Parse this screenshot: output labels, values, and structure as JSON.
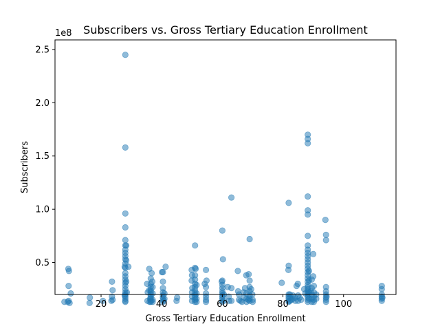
{
  "chart_data": {
    "type": "scatter",
    "title": "Subscribers vs. Gross Tertiary Education Enrollment",
    "xlabel": "Gross Tertiary Education Enrollment",
    "ylabel": "Subscribers",
    "y_offset_label": "1e8",
    "xlim": [
      4.8,
      117.3
    ],
    "ylim": [
      2.0,
      25.9
    ],
    "y_unit_multiplier": 100000000,
    "x_ticks": [
      {
        "value": 20,
        "label": "20"
      },
      {
        "value": 40,
        "label": "40"
      },
      {
        "value": 60,
        "label": "60"
      },
      {
        "value": 80,
        "label": "80"
      },
      {
        "value": 100,
        "label": "100"
      }
    ],
    "y_ticks": [
      {
        "value": 5,
        "label": "0.5"
      },
      {
        "value": 10,
        "label": "1.0"
      },
      {
        "value": 15,
        "label": "1.5"
      },
      {
        "value": 20,
        "label": "2.0"
      },
      {
        "value": 25,
        "label": "2.5"
      }
    ],
    "grid": false,
    "legend": "none",
    "marker_color": "#1f77b4",
    "marker_alpha": 0.5,
    "points": [
      [
        7.9,
        1.3
      ],
      [
        9.0,
        1.3
      ],
      [
        9.3,
        1.4
      ],
      [
        9.6,
        1.2
      ],
      [
        9.3,
        2.8
      ],
      [
        10.0,
        2.1
      ],
      [
        9.2,
        4.4
      ],
      [
        9.4,
        4.2
      ],
      [
        16.2,
        1.2
      ],
      [
        16.3,
        1.7
      ],
      [
        20.6,
        1.4
      ],
      [
        23.4,
        1.4
      ],
      [
        23.6,
        1.8
      ],
      [
        23.8,
        2.4
      ],
      [
        23.6,
        3.2
      ],
      [
        23.8,
        1.5
      ],
      [
        28.0,
        24.5
      ],
      [
        28.0,
        15.8
      ],
      [
        28.0,
        9.6
      ],
      [
        28.0,
        8.3
      ],
      [
        28.0,
        7.1
      ],
      [
        28.0,
        6.6
      ],
      [
        28.0,
        6.2
      ],
      [
        28.0,
        5.9
      ],
      [
        28.0,
        5.6
      ],
      [
        28.0,
        5.3
      ],
      [
        28.0,
        4.9
      ],
      [
        28.0,
        4.5
      ],
      [
        28.0,
        4.0
      ],
      [
        28.0,
        3.7
      ],
      [
        28.0,
        3.4
      ],
      [
        28.0,
        3.1
      ],
      [
        28.0,
        2.8
      ],
      [
        28.0,
        2.5
      ],
      [
        28.0,
        2.2
      ],
      [
        28.0,
        2.0
      ],
      [
        28.0,
        1.8
      ],
      [
        28.0,
        1.6
      ],
      [
        28.0,
        1.4
      ],
      [
        28.0,
        1.3
      ],
      [
        28.3,
        6.6
      ],
      [
        28.3,
        5.2
      ],
      [
        28.3,
        3.2
      ],
      [
        27.8,
        4.6
      ],
      [
        29.0,
        4.6
      ],
      [
        28.5,
        2.2
      ],
      [
        27.8,
        1.9
      ],
      [
        35.2,
        3.0
      ],
      [
        35.4,
        2.2
      ],
      [
        35.3,
        1.4
      ],
      [
        35.9,
        2.4
      ],
      [
        36.2,
        1.6
      ],
      [
        36.0,
        1.3
      ],
      [
        35.9,
        4.4
      ],
      [
        36.4,
        3.5
      ],
      [
        36.4,
        3.0
      ],
      [
        36.4,
        2.7
      ],
      [
        36.4,
        2.4
      ],
      [
        36.4,
        2.2
      ],
      [
        36.4,
        2.0
      ],
      [
        36.4,
        1.8
      ],
      [
        36.4,
        1.6
      ],
      [
        36.4,
        1.4
      ],
      [
        36.4,
        1.3
      ],
      [
        36.7,
        4.0
      ],
      [
        36.9,
        3.2
      ],
      [
        37.0,
        2.7
      ],
      [
        37.0,
        2.1
      ],
      [
        37.0,
        1.5
      ],
      [
        37.0,
        1.3
      ],
      [
        40.1,
        4.1
      ],
      [
        40.4,
        4.1
      ],
      [
        40.4,
        3.2
      ],
      [
        40.4,
        2.6
      ],
      [
        40.4,
        2.2
      ],
      [
        40.4,
        1.9
      ],
      [
        40.4,
        1.7
      ],
      [
        40.4,
        1.5
      ],
      [
        40.4,
        1.3
      ],
      [
        40.9,
        2.1
      ],
      [
        40.9,
        1.6
      ],
      [
        40.7,
        1.4
      ],
      [
        41.3,
        4.6
      ],
      [
        44.9,
        1.4
      ],
      [
        45.1,
        1.7
      ],
      [
        49.9,
        4.3
      ],
      [
        50.0,
        3.8
      ],
      [
        49.9,
        3.3
      ],
      [
        50.1,
        2.6
      ],
      [
        50.0,
        2.2
      ],
      [
        50.0,
        1.8
      ],
      [
        50.0,
        1.4
      ],
      [
        51.0,
        6.6
      ],
      [
        51.0,
        4.5
      ],
      [
        51.2,
        4.4
      ],
      [
        51.0,
        3.8
      ],
      [
        51.0,
        3.4
      ],
      [
        51.0,
        3.0
      ],
      [
        51.0,
        2.7
      ],
      [
        51.0,
        2.4
      ],
      [
        51.0,
        2.1
      ],
      [
        51.0,
        1.9
      ],
      [
        51.0,
        1.7
      ],
      [
        51.0,
        1.5
      ],
      [
        51.0,
        1.3
      ],
      [
        51.5,
        2.9
      ],
      [
        51.5,
        2.1
      ],
      [
        51.5,
        1.6
      ],
      [
        51.5,
        1.3
      ],
      [
        54.2,
        3.0
      ],
      [
        54.6,
        4.3
      ],
      [
        54.8,
        3.3
      ],
      [
        54.6,
        2.7
      ],
      [
        54.6,
        2.1
      ],
      [
        54.6,
        1.8
      ],
      [
        54.6,
        1.5
      ],
      [
        54.6,
        1.3
      ],
      [
        59.8,
        3.2
      ],
      [
        60.0,
        3.3
      ],
      [
        60.0,
        2.9
      ],
      [
        60.0,
        2.6
      ],
      [
        60.0,
        2.3
      ],
      [
        60.0,
        2.1
      ],
      [
        60.0,
        1.9
      ],
      [
        60.0,
        1.7
      ],
      [
        60.0,
        1.5
      ],
      [
        60.0,
        1.3
      ],
      [
        60.0,
        8.0
      ],
      [
        60.2,
        5.3
      ],
      [
        60.5,
        2.0
      ],
      [
        60.5,
        1.4
      ],
      [
        61.8,
        2.7
      ],
      [
        62.1,
        1.8
      ],
      [
        62.2,
        1.4
      ],
      [
        63.0,
        11.1
      ],
      [
        63.0,
        2.6
      ],
      [
        63.0,
        1.4
      ],
      [
        65.1,
        4.2
      ],
      [
        65.2,
        2.3
      ],
      [
        65.5,
        2.0
      ],
      [
        65.5,
        1.5
      ],
      [
        66.0,
        1.4
      ],
      [
        66.5,
        1.3
      ],
      [
        67.0,
        2.2
      ],
      [
        67.2,
        1.7
      ],
      [
        67.5,
        2.6
      ],
      [
        67.9,
        3.8
      ],
      [
        68.0,
        2.1
      ],
      [
        68.0,
        1.6
      ],
      [
        68.0,
        1.3
      ],
      [
        68.6,
        1.5
      ],
      [
        68.7,
        3.9
      ],
      [
        69.0,
        7.2
      ],
      [
        69.0,
        3.3
      ],
      [
        69.0,
        2.7
      ],
      [
        69.0,
        2.3
      ],
      [
        69.0,
        1.9
      ],
      [
        69.0,
        1.6
      ],
      [
        69.0,
        1.4
      ],
      [
        69.5,
        2.5
      ],
      [
        69.9,
        2.0
      ],
      [
        70.0,
        1.5
      ],
      [
        70.0,
        1.3
      ],
      [
        79.6,
        3.1
      ],
      [
        81.9,
        10.6
      ],
      [
        81.9,
        4.7
      ],
      [
        81.8,
        4.3
      ],
      [
        81.9,
        2.0
      ],
      [
        81.9,
        1.8
      ],
      [
        81.9,
        1.6
      ],
      [
        81.9,
        1.4
      ],
      [
        81.9,
        1.3
      ],
      [
        82.3,
        2.0
      ],
      [
        82.3,
        1.7
      ],
      [
        82.3,
        1.4
      ],
      [
        82.9,
        1.5
      ],
      [
        83.3,
        1.9
      ],
      [
        83.3,
        1.6
      ],
      [
        84.0,
        1.7
      ],
      [
        84.1,
        1.4
      ],
      [
        84.5,
        2.8
      ],
      [
        84.9,
        3.0
      ],
      [
        85.0,
        1.9
      ],
      [
        85.0,
        1.4
      ],
      [
        85.5,
        1.7
      ],
      [
        86.0,
        1.5
      ],
      [
        87.0,
        2.5
      ],
      [
        87.4,
        2.1
      ],
      [
        88.2,
        17.0
      ],
      [
        88.2,
        16.6
      ],
      [
        88.2,
        16.2
      ],
      [
        88.2,
        11.2
      ],
      [
        88.2,
        9.9
      ],
      [
        88.2,
        9.5
      ],
      [
        88.2,
        7.5
      ],
      [
        88.2,
        6.6
      ],
      [
        88.2,
        6.2
      ],
      [
        88.2,
        5.9
      ],
      [
        88.2,
        5.6
      ],
      [
        88.2,
        5.3
      ],
      [
        88.2,
        5.0
      ],
      [
        88.2,
        4.7
      ],
      [
        88.2,
        4.4
      ],
      [
        88.2,
        4.1
      ],
      [
        88.2,
        3.8
      ],
      [
        88.2,
        3.5
      ],
      [
        88.2,
        3.2
      ],
      [
        88.2,
        2.9
      ],
      [
        88.2,
        2.7
      ],
      [
        88.2,
        2.5
      ],
      [
        88.2,
        2.3
      ],
      [
        88.2,
        2.1
      ],
      [
        88.2,
        1.9
      ],
      [
        88.2,
        1.7
      ],
      [
        88.2,
        1.5
      ],
      [
        88.2,
        1.3
      ],
      [
        88.6,
        4.2
      ],
      [
        88.6,
        3.3
      ],
      [
        88.6,
        2.2
      ],
      [
        88.6,
        1.6
      ],
      [
        89.2,
        2.3
      ],
      [
        89.5,
        3.4
      ],
      [
        89.5,
        2.6
      ],
      [
        89.5,
        2.0
      ],
      [
        89.5,
        1.6
      ],
      [
        89.5,
        1.3
      ],
      [
        90.0,
        5.8
      ],
      [
        90.0,
        3.7
      ],
      [
        90.2,
        2.8
      ],
      [
        90.2,
        2.2
      ],
      [
        90.2,
        1.8
      ],
      [
        90.2,
        1.5
      ],
      [
        90.2,
        1.3
      ],
      [
        91.0,
        2.0
      ],
      [
        91.0,
        1.6
      ],
      [
        94.0,
        9.0
      ],
      [
        94.2,
        7.6
      ],
      [
        94.2,
        7.1
      ],
      [
        94.2,
        2.7
      ],
      [
        94.2,
        2.3
      ],
      [
        94.2,
        2.0
      ],
      [
        94.2,
        1.7
      ],
      [
        94.2,
        1.5
      ],
      [
        94.2,
        1.3
      ],
      [
        94.4,
        1.8
      ],
      [
        112.6,
        2.8
      ],
      [
        112.6,
        2.5
      ],
      [
        112.6,
        2.0
      ],
      [
        112.6,
        1.8
      ],
      [
        112.6,
        1.6
      ],
      [
        112.6,
        1.4
      ],
      [
        112.8,
        1.7
      ]
    ]
  }
}
